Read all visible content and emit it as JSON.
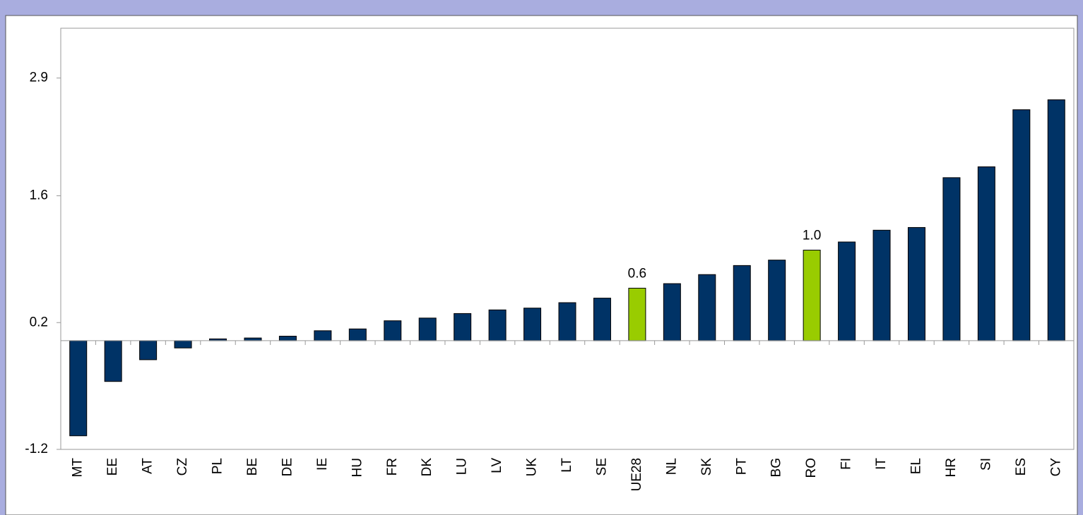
{
  "chart_data": {
    "type": "bar",
    "categories": [
      "MT",
      "EE",
      "AT",
      "CZ",
      "PL",
      "BE",
      "DE",
      "IE",
      "HU",
      "FR",
      "DK",
      "LU",
      "LV",
      "UK",
      "LT",
      "SE",
      "UE28",
      "NL",
      "SK",
      "PT",
      "BG",
      "RO",
      "FI",
      "IT",
      "EL",
      "HR",
      "SI",
      "ES",
      "CY"
    ],
    "values": [
      -1.05,
      -0.45,
      -0.21,
      -0.08,
      0.02,
      0.03,
      0.05,
      0.11,
      0.13,
      0.22,
      0.25,
      0.3,
      0.34,
      0.36,
      0.42,
      0.47,
      0.58,
      0.63,
      0.73,
      0.83,
      0.89,
      1.0,
      1.09,
      1.22,
      1.25,
      1.8,
      1.92,
      2.55,
      2.66
    ],
    "value_labels": [
      null,
      null,
      null,
      null,
      null,
      null,
      null,
      null,
      null,
      null,
      null,
      null,
      null,
      null,
      null,
      null,
      "0.6",
      null,
      null,
      null,
      null,
      "1.0",
      null,
      null,
      null,
      null,
      null,
      null,
      null
    ],
    "colors": [
      "#003366",
      "#003366",
      "#003366",
      "#003366",
      "#003366",
      "#003366",
      "#003366",
      "#003366",
      "#003366",
      "#003366",
      "#003366",
      "#003366",
      "#003366",
      "#003366",
      "#003366",
      "#003366",
      "#99cc00",
      "#003366",
      "#003366",
      "#003366",
      "#003366",
      "#99cc00",
      "#003366",
      "#003366",
      "#003366",
      "#003366",
      "#003366",
      "#003366",
      "#003366"
    ],
    "ylim": [
      -1.2,
      3.45
    ],
    "yticks": [
      -1.2,
      0.2,
      1.6,
      2.9
    ],
    "grid": false
  }
}
